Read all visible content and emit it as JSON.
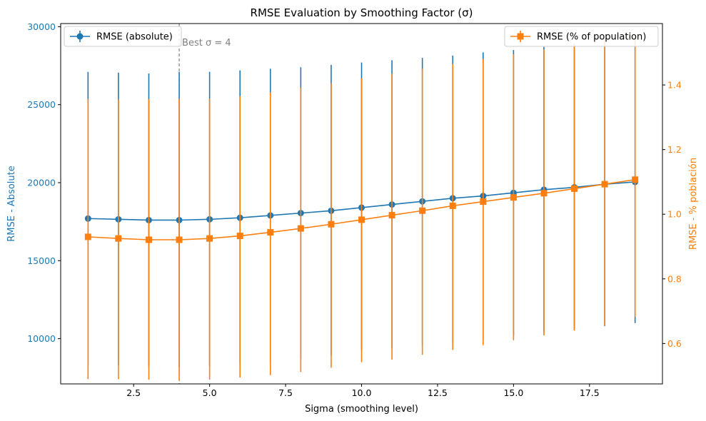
{
  "chart_data": {
    "type": "line",
    "title": "RMSE Evaluation by Smoothing Factor (σ)",
    "xlabel": "Sigma (smoothing level)",
    "ylabel_left": "RMSE - Absolute",
    "ylabel_right": "RMSE - % población",
    "xlim": [
      0.1,
      19.9
    ],
    "ylim_left": [
      7100,
      30200
    ],
    "ylim_right": [
      0.475,
      1.59
    ],
    "x_ticks": [
      2.5,
      5.0,
      7.5,
      10.0,
      12.5,
      15.0,
      17.5
    ],
    "x_tick_labels": [
      "2.5",
      "5.0",
      "7.5",
      "10.0",
      "12.5",
      "15.0",
      "17.5"
    ],
    "y_left_ticks": [
      10000,
      15000,
      20000,
      25000,
      30000
    ],
    "y_left_tick_labels": [
      "10000",
      "15000",
      "20000",
      "25000",
      "30000"
    ],
    "y_right_ticks": [
      0.6,
      0.8,
      1.0,
      1.2,
      1.4
    ],
    "y_right_tick_labels": [
      "0.6",
      "0.8",
      "1.0",
      "1.2",
      "1.4"
    ],
    "x": [
      1,
      2,
      3,
      4,
      5,
      6,
      7,
      8,
      9,
      10,
      11,
      12,
      13,
      14,
      15,
      16,
      17,
      18,
      19
    ],
    "grid": false,
    "colors": {
      "left": "#1f77b4",
      "right": "#ff7f0e",
      "annotation": "#808080"
    },
    "series": [
      {
        "name": "RMSE (absolute)",
        "axis": "left",
        "marker": "circle",
        "values": [
          17700,
          17650,
          17600,
          17600,
          17650,
          17750,
          17900,
          18050,
          18200,
          18400,
          18600,
          18800,
          19000,
          19150,
          19350,
          19550,
          19700,
          19900,
          20050
        ],
        "err_low": [
          8300,
          8300,
          8250,
          8150,
          8250,
          8350,
          8500,
          8700,
          8900,
          9300,
          9400,
          9600,
          9800,
          10000,
          10200,
          10400,
          10600,
          10800,
          11000
        ],
        "err_high": [
          27100,
          27050,
          27000,
          27100,
          27100,
          27200,
          27300,
          27400,
          27550,
          27700,
          27850,
          28000,
          28150,
          28350,
          28500,
          28700,
          28900,
          29000,
          29100
        ]
      },
      {
        "name": "RMSE (% of population)",
        "axis": "right",
        "marker": "square",
        "values": [
          0.93,
          0.925,
          0.921,
          0.921,
          0.925,
          0.933,
          0.944,
          0.956,
          0.969,
          0.983,
          0.997,
          1.011,
          1.026,
          1.039,
          1.052,
          1.065,
          1.079,
          1.093,
          1.107
        ],
        "err_low": [
          0.49,
          0.49,
          0.488,
          0.486,
          0.488,
          0.495,
          0.502,
          0.512,
          0.525,
          0.542,
          0.55,
          0.565,
          0.58,
          0.595,
          0.61,
          0.625,
          0.64,
          0.655,
          0.682
        ],
        "err_high": [
          1.357,
          1.355,
          1.356,
          1.357,
          1.358,
          1.365,
          1.377,
          1.391,
          1.405,
          1.42,
          1.435,
          1.45,
          1.465,
          1.48,
          1.495,
          1.51,
          1.525,
          1.54,
          1.555
        ]
      }
    ],
    "vline": {
      "x": 4,
      "label": "Best σ = 4"
    },
    "legend_left_position": "upper-left",
    "legend_right_position": "upper-right"
  }
}
